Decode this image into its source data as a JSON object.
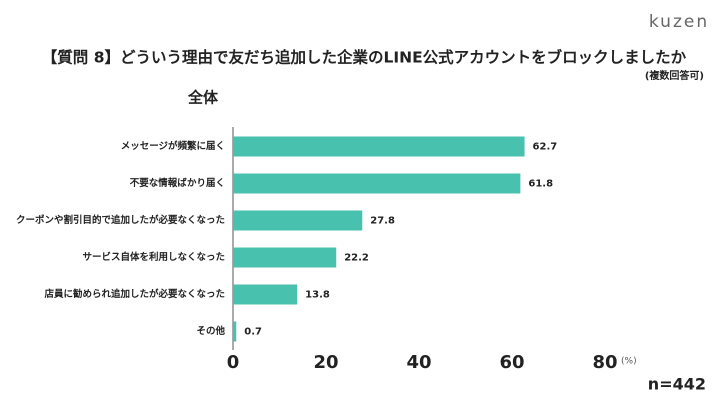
{
  "logo": "kuzen",
  "chart_data": {
    "type": "barh",
    "title": "【質問 8】どういう理由で友だち追加した企業のLINE公式アカウントをブロックしましたか",
    "subtitle": "(複数回答可)",
    "panel_label": "全体",
    "categories": [
      "メッセージが頻繁に届く",
      "不要な情報ばかり届く",
      "クーポンや割引目的で追加したが必要なくなった",
      "サービス自体を利用しなくなった",
      "店員に勧められ追加したが必要なくなった",
      "その他"
    ],
    "values": [
      62.7,
      61.8,
      27.8,
      22.2,
      13.8,
      0.7
    ],
    "color": "#48c1ae",
    "xlim": [
      0,
      80
    ],
    "xticks": [
      0,
      20,
      40,
      60,
      80
    ],
    "x_unit_label": "(%)",
    "grid": false,
    "sample_size_label": "n=442"
  }
}
